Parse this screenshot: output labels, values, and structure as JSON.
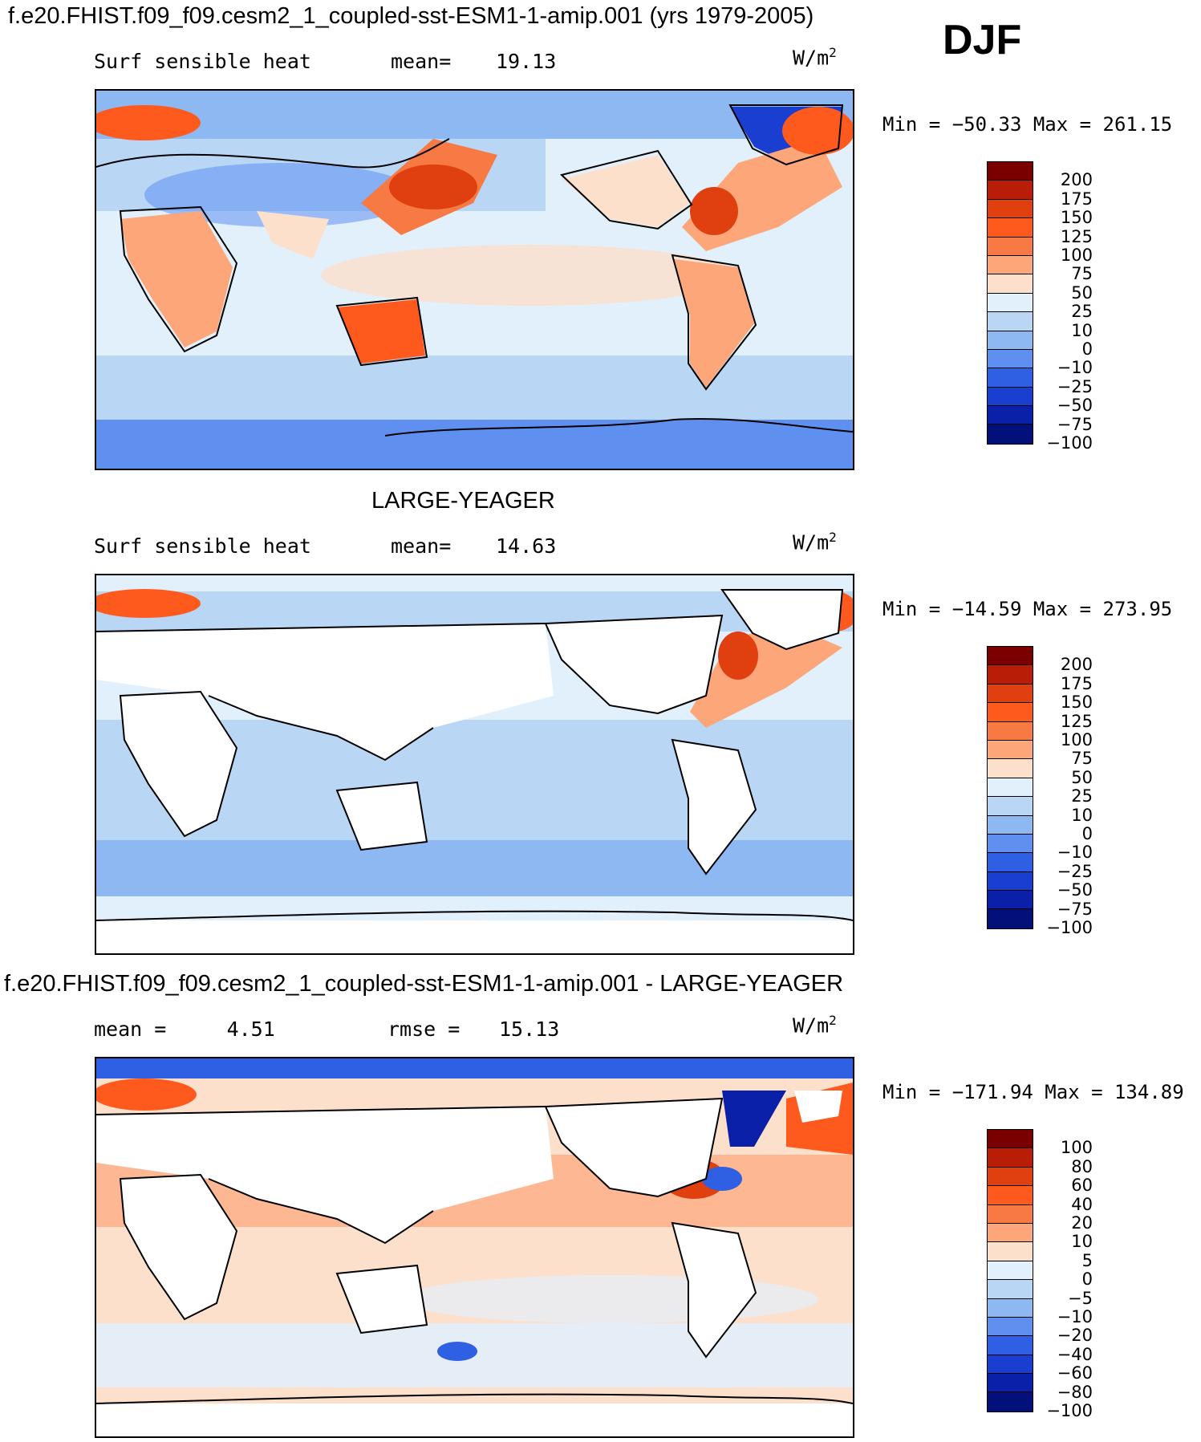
{
  "header": {
    "title": "f.e20.FHIST.f09_f09.cesm2_1_coupled-sst-ESM1-1-amip.001 (yrs 1979-2005)",
    "season": "DJF"
  },
  "panels": [
    {
      "top_title": "",
      "left": "Surf sensible heat",
      "center_label": "mean=",
      "center_value": "19.13",
      "units": "W/m",
      "units_sup": "2",
      "minmax": "Min = −50.33 Max = 261.15",
      "colorbar_colors": [
        "#7a0000",
        "#b81e07",
        "#e0400f",
        "#ff5a1e",
        "#f77a45",
        "#fca67a",
        "#fde0cc",
        "#e2f0fb",
        "#b9d6f5",
        "#8db8f2",
        "#5f90f0",
        "#2f5fe3",
        "#1a3ed0",
        "#0b20a8",
        "#03107a"
      ],
      "colorbar_labels": [
        "200",
        "175",
        "150",
        "125",
        "100",
        "75",
        "50",
        "25",
        "10",
        "0",
        "−10",
        "−25",
        "−50",
        "−75",
        "−100"
      ]
    },
    {
      "top_title": "LARGE-YEAGER",
      "left": "Surf sensible heat",
      "center_label": "mean=",
      "center_value": "14.63",
      "units": "W/m",
      "units_sup": "2",
      "minmax": "Min = −14.59 Max = 273.95",
      "colorbar_colors": [
        "#7a0000",
        "#b81e07",
        "#e0400f",
        "#ff5a1e",
        "#f77a45",
        "#fca67a",
        "#fde0cc",
        "#e2f0fb",
        "#b9d6f5",
        "#8db8f2",
        "#5f90f0",
        "#2f5fe3",
        "#1a3ed0",
        "#0b20a8",
        "#03107a"
      ],
      "colorbar_labels": [
        "200",
        "175",
        "150",
        "125",
        "100",
        "75",
        "50",
        "25",
        "10",
        "0",
        "−10",
        "−25",
        "−50",
        "−75",
        "−100"
      ]
    },
    {
      "top_title": "f.e20.FHIST.f09_f09.cesm2_1_coupled-sst-ESM1-1-amip.001 - LARGE-YEAGER",
      "left": "mean =     4.51",
      "center_label": "rmse =",
      "center_value": "15.13",
      "units": "W/m",
      "units_sup": "2",
      "minmax": "Min = −171.94 Max = 134.89",
      "colorbar_colors": [
        "#7a0000",
        "#b81e07",
        "#e0400f",
        "#ff5a1e",
        "#f77a45",
        "#fca67a",
        "#fde0cc",
        "#e2f0fb",
        "#b9d6f5",
        "#8db8f2",
        "#5f90f0",
        "#2f5fe3",
        "#1a3ed0",
        "#0b20a8",
        "#03107a"
      ],
      "colorbar_labels": [
        "100",
        "80",
        "60",
        "40",
        "20",
        "10",
        "5",
        "0",
        "−5",
        "−10",
        "−20",
        "−40",
        "−60",
        "−80",
        "−100"
      ]
    }
  ],
  "chart_data": [
    {
      "type": "heatmap",
      "title": "Surf sensible heat",
      "mean": 19.13,
      "units": "W/m2",
      "min": -50.33,
      "max": 261.15,
      "contour_levels": [
        -100,
        -75,
        -50,
        -25,
        -10,
        0,
        10,
        25,
        50,
        75,
        100,
        125,
        150,
        175,
        200
      ]
    },
    {
      "type": "heatmap",
      "title": "Surf sensible heat",
      "dataset": "LARGE-YEAGER",
      "mean": 14.63,
      "units": "W/m2",
      "min": -14.59,
      "max": 273.95,
      "contour_levels": [
        -100,
        -75,
        -50,
        -25,
        -10,
        0,
        10,
        25,
        50,
        75,
        100,
        125,
        150,
        175,
        200
      ]
    },
    {
      "type": "heatmap",
      "title": "f.e20.FHIST.f09_f09.cesm2_1_coupled-sst-ESM1-1-amip.001 - LARGE-YEAGER",
      "mean": 4.51,
      "rmse": 15.13,
      "units": "W/m2",
      "min": -171.94,
      "max": 134.89,
      "contour_levels": [
        -100,
        -80,
        -60,
        -40,
        -20,
        -10,
        -5,
        0,
        5,
        10,
        20,
        40,
        60,
        80,
        100
      ]
    }
  ]
}
